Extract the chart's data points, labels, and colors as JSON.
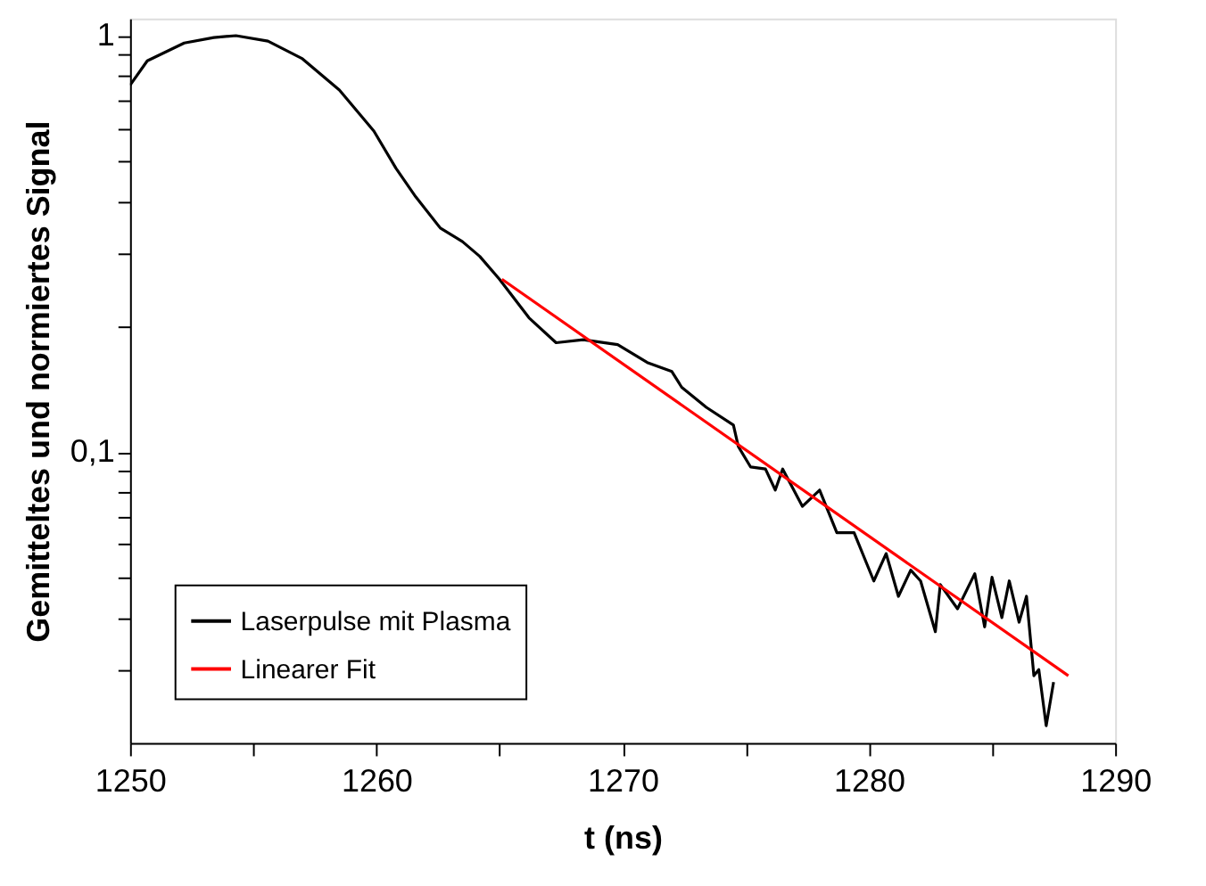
{
  "chart_data": {
    "type": "line",
    "xlabel": "t (ns)",
    "ylabel": "Gemitteltes und normiertes Signal",
    "xlim": [
      1250,
      1290
    ],
    "ylim": [
      0.02,
      1.1
    ],
    "log": "y",
    "grid": false,
    "legend": "bottom left",
    "line_style": "solid",
    "marker": "none",
    "xticks": [
      1250,
      {
        "value": 1255,
        "label": null
      },
      1260,
      {
        "value": 1265,
        "label": null
      },
      1270,
      {
        "value": 1275,
        "label": null
      },
      1280,
      {
        "value": 1285,
        "label": null
      },
      1290
    ],
    "yticks": [
      {
        "value": 0.03,
        "label": null
      },
      {
        "value": 0.04,
        "label": null
      },
      {
        "value": 0.05,
        "label": null
      },
      {
        "value": 0.06,
        "label": null
      },
      {
        "value": 0.07,
        "label": null
      },
      {
        "value": 0.08,
        "label": null
      },
      {
        "value": 0.09,
        "label": null
      },
      {
        "value": 0.1,
        "label": "0,1"
      },
      {
        "value": 0.2,
        "label": null
      },
      {
        "value": 0.3,
        "label": null
      },
      {
        "value": 0.4,
        "label": null
      },
      {
        "value": 0.5,
        "label": null
      },
      {
        "value": 0.6,
        "label": null
      },
      {
        "value": 0.7,
        "label": null
      },
      {
        "value": 0.8,
        "label": null
      },
      {
        "value": 0.9,
        "label": null
      },
      1
    ],
    "series": [
      {
        "name": "Laserpulse mit Plasma",
        "color": "#000000",
        "x": [
          1250,
          1250.7,
          1252.2,
          1253.4,
          1254.3,
          1255.6,
          1257.0,
          1258.5,
          1259.9,
          1260.8,
          1261.6,
          1262.6,
          1263.5,
          1264.2,
          1265.0,
          1266.2,
          1267.3,
          1268.4,
          1269.8,
          1271.0,
          1272.0,
          1272.4,
          1273.4,
          1274.5,
          1274.7,
          1275.2,
          1275.8,
          1276.2,
          1276.5,
          1277.3,
          1278.0,
          1278.7,
          1279.4,
          1280.2,
          1280.7,
          1281.2,
          1281.7,
          1282.1,
          1282.7,
          1282.9,
          1283.6,
          1284.3,
          1284.7,
          1285.0,
          1285.4,
          1285.7,
          1286.1,
          1286.4,
          1286.7,
          1286.9,
          1287.2,
          1287.5
        ],
        "values": [
          0.76,
          0.87,
          0.96,
          0.99,
          1.0,
          0.97,
          0.88,
          0.74,
          0.59,
          0.48,
          0.41,
          0.345,
          0.32,
          0.295,
          0.26,
          0.21,
          0.183,
          0.186,
          0.181,
          0.164,
          0.156,
          0.143,
          0.128,
          0.116,
          0.103,
          0.092,
          0.091,
          0.081,
          0.091,
          0.074,
          0.081,
          0.064,
          0.064,
          0.049,
          0.057,
          0.045,
          0.052,
          0.049,
          0.037,
          0.048,
          0.042,
          0.051,
          0.038,
          0.05,
          0.04,
          0.049,
          0.039,
          0.045,
          0.029,
          0.03,
          0.022,
          0.028
        ]
      },
      {
        "name": "Linearer Fit",
        "color": "#ff0000",
        "x": [
          1265.1,
          1288.1
        ],
        "values": [
          0.26,
          0.029
        ]
      }
    ]
  }
}
